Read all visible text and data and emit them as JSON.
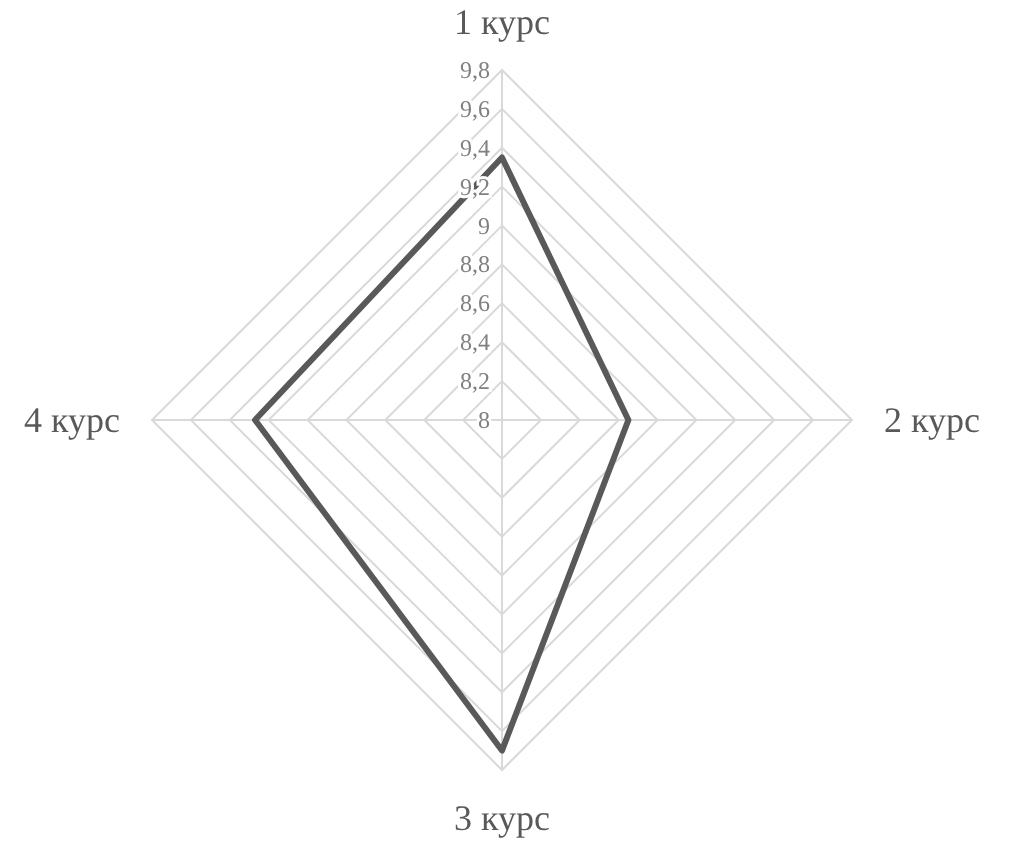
{
  "chart_data": {
    "type": "radar",
    "categories": [
      "1 курс",
      "2 курс",
      "3 курс",
      "4 курс"
    ],
    "series": [
      {
        "color": "#595959",
        "values": [
          9.35,
          8.65,
          9.7,
          9.27
        ]
      }
    ],
    "ylim": [
      8,
      9.8
    ],
    "yticks": [
      {
        "value": 8,
        "label": "8"
      },
      {
        "value": 8.2,
        "label": "8,2"
      },
      {
        "value": 8.4,
        "label": "8,4"
      },
      {
        "value": 8.6,
        "label": "8,6"
      },
      {
        "value": 8.8,
        "label": "8,8"
      },
      {
        "value": 9,
        "label": "9"
      },
      {
        "value": 9.2,
        "label": "9,2"
      },
      {
        "value": 9.4,
        "label": "9,4"
      },
      {
        "value": 9.6,
        "label": "9,6"
      },
      {
        "value": 9.8,
        "label": "9,8"
      }
    ],
    "grid": true,
    "marker": "none",
    "line_style": "solid"
  }
}
